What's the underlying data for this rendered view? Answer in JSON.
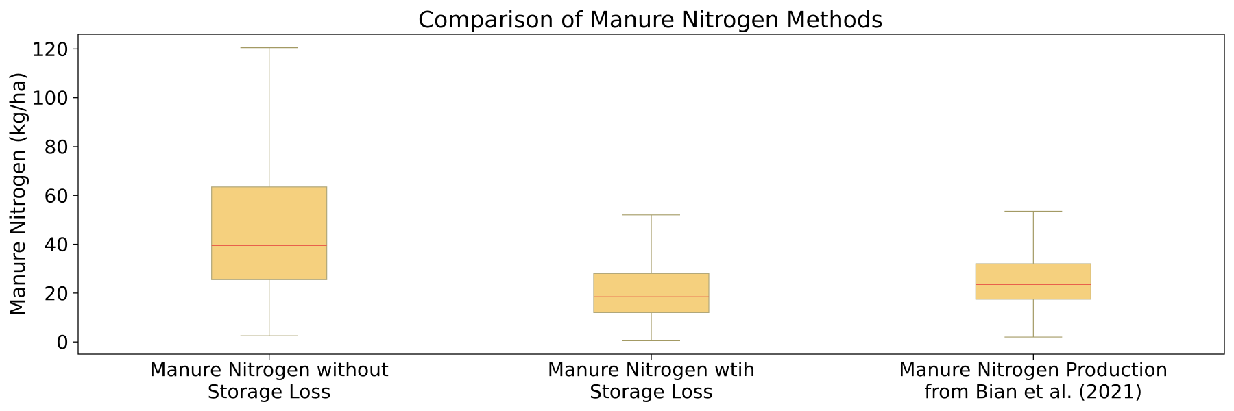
{
  "chart_data": {
    "type": "box",
    "title": "Comparison of Manure Nitrogen Methods",
    "xlabel": "",
    "ylabel": "Manure Nitrogen (kg/ha)",
    "ylim": [
      -5,
      126
    ],
    "yticks": [
      0,
      20,
      40,
      60,
      80,
      100,
      120
    ],
    "grid": false,
    "categories": [
      [
        "Manure Nitrogen without",
        "Storage Loss"
      ],
      [
        "Manure Nitrogen wtih",
        "Storage Loss"
      ],
      [
        "Manure Nitrogen Production",
        "from Bian et al. (2021)"
      ]
    ],
    "boxes": [
      {
        "whisker_low": 2.5,
        "q1": 25.5,
        "median": 39.5,
        "q3": 63.5,
        "whisker_high": 120.5
      },
      {
        "whisker_low": 0.5,
        "q1": 12.0,
        "median": 18.5,
        "q3": 28.0,
        "whisker_high": 52.0
      },
      {
        "whisker_low": 2.0,
        "q1": 17.5,
        "median": 23.5,
        "q3": 32.0,
        "whisker_high": 53.5
      }
    ],
    "colors": {
      "box_fill": "#f5d07e",
      "box_edge": "#b0a77a",
      "whisker": "#a39a64",
      "median": "#e8604c",
      "axis": "#000000"
    }
  }
}
